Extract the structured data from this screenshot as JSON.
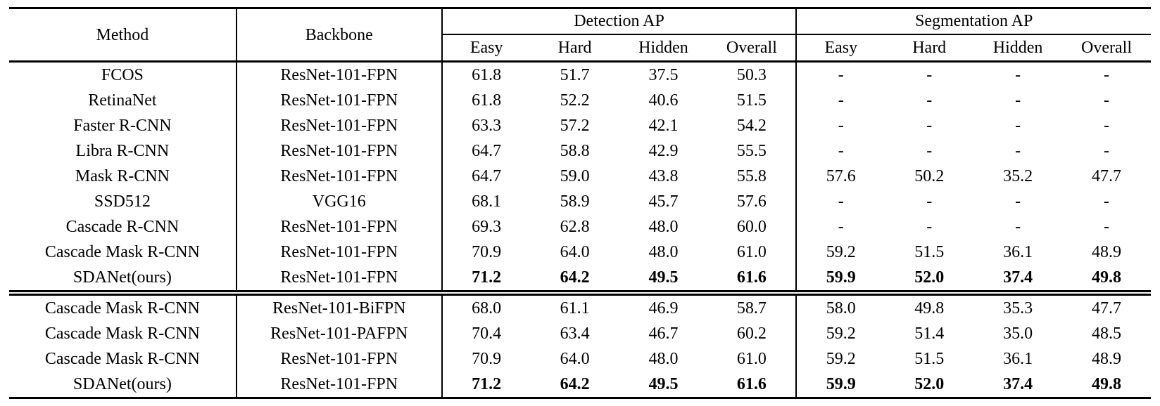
{
  "table": {
    "header": {
      "method": "Method",
      "backbone": "Backbone",
      "groups": [
        {
          "label": "Detection AP",
          "cols": [
            "Easy",
            "Hard",
            "Hidden",
            "Overall"
          ]
        },
        {
          "label": "Segmentation AP",
          "cols": [
            "Easy",
            "Hard",
            "Hidden",
            "Overall"
          ]
        }
      ]
    },
    "sections": [
      {
        "rows": [
          {
            "method": "FCOS",
            "backbone": "ResNet-101-FPN",
            "detection": [
              "61.8",
              "51.7",
              "37.5",
              "50.3"
            ],
            "segmentation": [
              "-",
              "-",
              "-",
              "-"
            ],
            "bold": false
          },
          {
            "method": "RetinaNet",
            "backbone": "ResNet-101-FPN",
            "detection": [
              "61.8",
              "52.2",
              "40.6",
              "51.5"
            ],
            "segmentation": [
              "-",
              "-",
              "-",
              "-"
            ],
            "bold": false
          },
          {
            "method": "Faster R-CNN",
            "backbone": "ResNet-101-FPN",
            "detection": [
              "63.3",
              "57.2",
              "42.1",
              "54.2"
            ],
            "segmentation": [
              "-",
              "-",
              "-",
              "-"
            ],
            "bold": false
          },
          {
            "method": "Libra R-CNN",
            "backbone": "ResNet-101-FPN",
            "detection": [
              "64.7",
              "58.8",
              "42.9",
              "55.5"
            ],
            "segmentation": [
              "-",
              "-",
              "-",
              "-"
            ],
            "bold": false
          },
          {
            "method": "Mask R-CNN",
            "backbone": "ResNet-101-FPN",
            "detection": [
              "64.7",
              "59.0",
              "43.8",
              "55.8"
            ],
            "segmentation": [
              "57.6",
              "50.2",
              "35.2",
              "47.7"
            ],
            "bold": false
          },
          {
            "method": "SSD512",
            "backbone": "VGG16",
            "detection": [
              "68.1",
              "58.9",
              "45.7",
              "57.6"
            ],
            "segmentation": [
              "-",
              "-",
              "-",
              "-"
            ],
            "bold": false
          },
          {
            "method": "Cascade R-CNN",
            "backbone": "ResNet-101-FPN",
            "detection": [
              "69.3",
              "62.8",
              "48.0",
              "60.0"
            ],
            "segmentation": [
              "-",
              "-",
              "-",
              "-"
            ],
            "bold": false
          },
          {
            "method": "Cascade Mask R-CNN",
            "backbone": "ResNet-101-FPN",
            "detection": [
              "70.9",
              "64.0",
              "48.0",
              "61.0"
            ],
            "segmentation": [
              "59.2",
              "51.5",
              "36.1",
              "48.9"
            ],
            "bold": false
          },
          {
            "method": "SDANet(ours)",
            "backbone": "ResNet-101-FPN",
            "detection": [
              "71.2",
              "64.2",
              "49.5",
              "61.6"
            ],
            "segmentation": [
              "59.9",
              "52.0",
              "37.4",
              "49.8"
            ],
            "bold": true
          }
        ]
      },
      {
        "rows": [
          {
            "method": "Cascade Mask R-CNN",
            "backbone": "ResNet-101-BiFPN",
            "detection": [
              "68.0",
              "61.1",
              "46.9",
              "58.7"
            ],
            "segmentation": [
              "58.0",
              "49.8",
              "35.3",
              "47.7"
            ],
            "bold": false
          },
          {
            "method": "Cascade Mask R-CNN",
            "backbone": "ResNet-101-PAFPN",
            "detection": [
              "70.4",
              "63.4",
              "46.7",
              "60.2"
            ],
            "segmentation": [
              "59.2",
              "51.4",
              "35.0",
              "48.5"
            ],
            "bold": false
          },
          {
            "method": "Cascade Mask R-CNN",
            "backbone": "ResNet-101-FPN",
            "detection": [
              "70.9",
              "64.0",
              "48.0",
              "61.0"
            ],
            "segmentation": [
              "59.2",
              "51.5",
              "36.1",
              "48.9"
            ],
            "bold": false
          },
          {
            "method": "SDANet(ours)",
            "backbone": "ResNet-101-FPN",
            "detection": [
              "71.2",
              "64.2",
              "49.5",
              "61.6"
            ],
            "segmentation": [
              "59.9",
              "52.0",
              "37.4",
              "49.8"
            ],
            "bold": true
          }
        ]
      }
    ]
  },
  "colors": {
    "text": "#000000",
    "background": "#ffffff",
    "rule": "#000000"
  }
}
